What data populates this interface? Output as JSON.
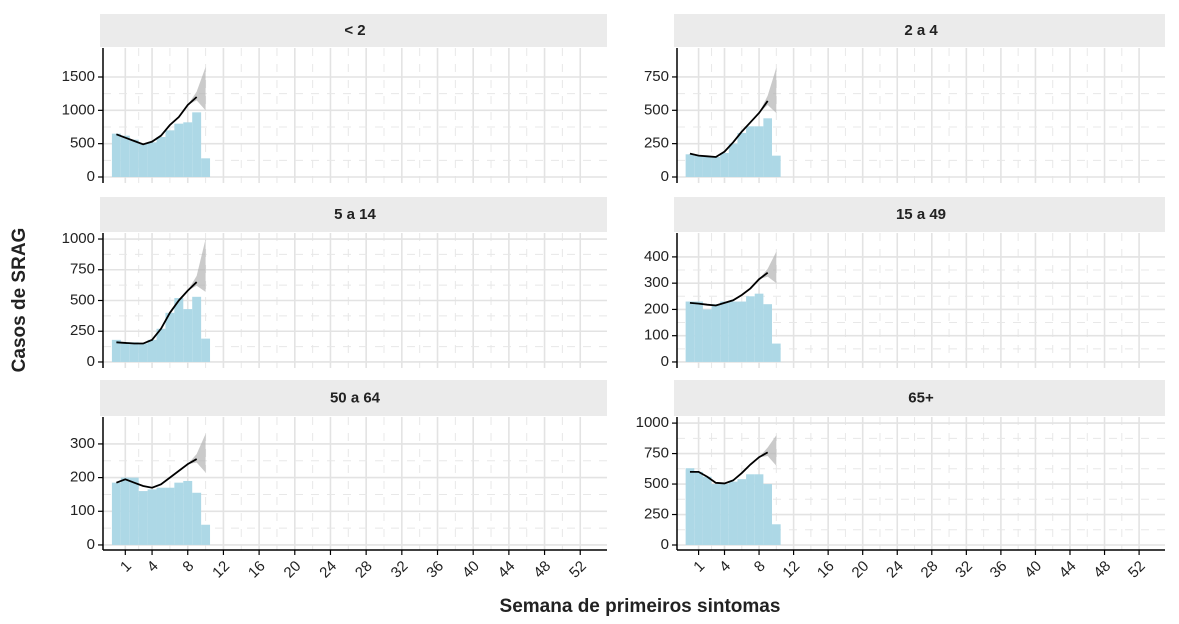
{
  "xlabel": "Semana de primeiros sintomas",
  "ylabel": "Casos de SRAG",
  "chart_data": [
    {
      "type": "bar",
      "title": "< 2",
      "x": [
        0,
        1,
        2,
        3,
        4,
        5,
        6,
        7,
        8,
        9,
        10
      ],
      "values": [
        650,
        620,
        560,
        500,
        520,
        600,
        700,
        800,
        820,
        970,
        280
      ],
      "line": [
        640,
        590,
        540,
        490,
        530,
        620,
        780,
        900,
        1080,
        1200,
        null
      ],
      "ribbon": {
        "x": [
          8,
          9,
          10
        ],
        "lower": [
          1080,
          1150,
          1000
        ],
        "upper": [
          1080,
          1280,
          1650
        ]
      },
      "bar_color": "#add8e6",
      "line_color": "#000000",
      "ribbon_color": "#b3b3b3",
      "xlim": [
        -1.5,
        55
      ],
      "xticks": [
        1,
        4,
        8,
        12,
        16,
        20,
        24,
        28,
        32,
        36,
        40,
        44,
        48,
        52
      ],
      "ylim": [
        -90,
        1935
      ],
      "yticks": [
        0,
        500,
        1000,
        1500
      ],
      "grid": true
    },
    {
      "type": "bar",
      "title": "2 a 4",
      "x": [
        0,
        1,
        2,
        3,
        4,
        5,
        6,
        7,
        8,
        9,
        10
      ],
      "values": [
        170,
        160,
        150,
        150,
        180,
        250,
        330,
        380,
        380,
        440,
        160
      ],
      "line": [
        175,
        160,
        155,
        150,
        190,
        260,
        340,
        410,
        480,
        570,
        null
      ],
      "ribbon": {
        "x": [
          8,
          9,
          10
        ],
        "lower": [
          480,
          540,
          480
        ],
        "upper": [
          480,
          610,
          820
        ]
      },
      "bar_color": "#add8e6",
      "line_color": "#000000",
      "ribbon_color": "#b3b3b3",
      "xlim": [
        -1.5,
        55
      ],
      "xticks": [
        1,
        4,
        8,
        12,
        16,
        20,
        24,
        28,
        32,
        36,
        40,
        44,
        48,
        52
      ],
      "ylim": [
        -45,
        967
      ],
      "yticks": [
        0,
        250,
        500,
        750
      ],
      "grid": true
    },
    {
      "type": "bar",
      "title": "5 a 14",
      "x": [
        0,
        1,
        2,
        3,
        4,
        5,
        6,
        7,
        8,
        9,
        10
      ],
      "values": [
        180,
        160,
        160,
        150,
        180,
        270,
        400,
        520,
        430,
        530,
        190
      ],
      "line": [
        160,
        155,
        150,
        150,
        180,
        270,
        400,
        500,
        580,
        650,
        null
      ],
      "ribbon": {
        "x": [
          8,
          9,
          10
        ],
        "lower": [
          580,
          620,
          570
        ],
        "upper": [
          580,
          700,
          1000
        ]
      },
      "bar_color": "#add8e6",
      "line_color": "#000000",
      "ribbon_color": "#b3b3b3",
      "xlim": [
        -1.5,
        55
      ],
      "xticks": [
        1,
        4,
        8,
        12,
        16,
        20,
        24,
        28,
        32,
        36,
        40,
        44,
        48,
        52
      ],
      "ylim": [
        -49,
        1049
      ],
      "yticks": [
        0,
        250,
        500,
        750,
        1000
      ],
      "grid": true
    },
    {
      "type": "bar",
      "title": "15 a 49",
      "x": [
        0,
        1,
        2,
        3,
        4,
        5,
        6,
        7,
        8,
        9,
        10
      ],
      "values": [
        230,
        230,
        200,
        220,
        230,
        230,
        230,
        250,
        260,
        220,
        70
      ],
      "line": [
        225,
        222,
        218,
        215,
        225,
        235,
        255,
        280,
        315,
        340,
        null
      ],
      "ribbon": {
        "x": [
          8,
          9,
          10
        ],
        "lower": [
          315,
          325,
          300
        ],
        "upper": [
          315,
          355,
          420
        ]
      },
      "bar_color": "#add8e6",
      "line_color": "#000000",
      "ribbon_color": "#b3b3b3",
      "xlim": [
        -1.5,
        55
      ],
      "xticks": [
        1,
        4,
        8,
        12,
        16,
        20,
        24,
        28,
        32,
        36,
        40,
        44,
        48,
        52
      ],
      "ylim": [
        -23,
        491
      ],
      "yticks": [
        0,
        100,
        200,
        300,
        400
      ],
      "grid": true
    },
    {
      "type": "bar",
      "title": "50 a 64",
      "x": [
        0,
        1,
        2,
        3,
        4,
        5,
        6,
        7,
        8,
        9,
        10
      ],
      "values": [
        185,
        200,
        200,
        160,
        165,
        170,
        170,
        185,
        190,
        155,
        60
      ],
      "line": [
        185,
        195,
        185,
        175,
        170,
        180,
        200,
        220,
        240,
        255,
        null
      ],
      "ribbon": {
        "x": [
          8,
          9,
          10
        ],
        "lower": [
          240,
          245,
          215
        ],
        "upper": [
          240,
          270,
          330
        ]
      },
      "bar_color": "#add8e6",
      "line_color": "#000000",
      "ribbon_color": "#b3b3b3",
      "xlim": [
        -1.5,
        55
      ],
      "xticks": [
        1,
        4,
        8,
        12,
        16,
        20,
        24,
        28,
        32,
        36,
        40,
        44,
        48,
        52
      ],
      "ylim": [
        -15,
        380
      ],
      "yticks": [
        0,
        100,
        200,
        300
      ],
      "grid": true
    },
    {
      "type": "bar",
      "title": "65+",
      "x": [
        0,
        1,
        2,
        3,
        4,
        5,
        6,
        7,
        8,
        9,
        10
      ],
      "values": [
        630,
        600,
        560,
        500,
        500,
        520,
        540,
        580,
        580,
        500,
        170
      ],
      "line": [
        600,
        600,
        560,
        510,
        505,
        530,
        590,
        660,
        720,
        760,
        null
      ],
      "ribbon": {
        "x": [
          8,
          9,
          10
        ],
        "lower": [
          720,
          730,
          650
        ],
        "upper": [
          720,
          800,
          900
        ]
      },
      "bar_color": "#add8e6",
      "line_color": "#000000",
      "ribbon_color": "#b3b3b3",
      "xlim": [
        -1.5,
        55
      ],
      "xticks": [
        1,
        4,
        8,
        12,
        16,
        20,
        24,
        28,
        32,
        36,
        40,
        44,
        48,
        52
      ],
      "ylim": [
        -41,
        1050
      ],
      "yticks": [
        0,
        250,
        500,
        750,
        1000
      ],
      "grid": true
    }
  ]
}
